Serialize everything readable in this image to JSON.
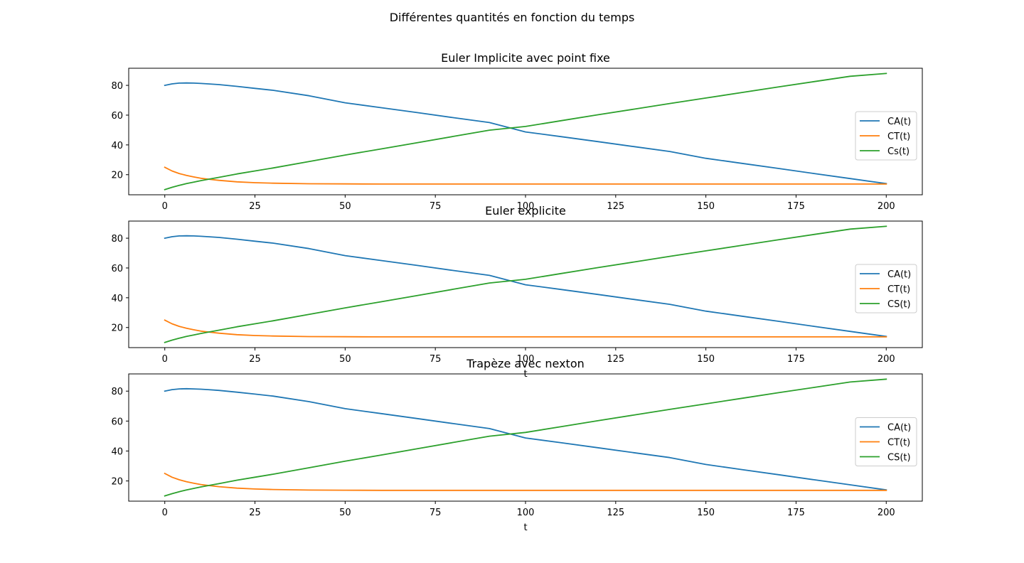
{
  "figure": {
    "suptitle": "Différentes quantités en fonction du temps"
  },
  "colors": {
    "CA": "#1f77b4",
    "CT": "#ff7f0e",
    "CS": "#2ca02c"
  },
  "chart_data": [
    {
      "type": "line",
      "title": "Euler Implicite avec point fixe",
      "xlabel": "",
      "ylabel": "",
      "xlim": [
        -10,
        210
      ],
      "ylim": [
        6.5,
        91.5
      ],
      "xticks": [
        0,
        25,
        50,
        75,
        100,
        125,
        150,
        175,
        200
      ],
      "yticks": [
        20,
        40,
        60,
        80
      ],
      "legend_position": "center-right",
      "grid": false,
      "x": [
        0,
        2,
        4,
        6,
        8,
        10,
        12,
        15,
        20,
        25,
        30,
        40,
        50,
        60,
        70,
        80,
        90,
        100,
        110,
        120,
        130,
        140,
        150,
        160,
        170,
        180,
        190,
        200
      ],
      "series": [
        {
          "name": "CA(t)",
          "color": "CA",
          "values": [
            80.0,
            81.0,
            81.5,
            81.6,
            81.5,
            81.3,
            81.0,
            80.5,
            79.3,
            78.0,
            76.7,
            73.0,
            68.3,
            65.0,
            61.7,
            58.3,
            55.0,
            48.7,
            45.5,
            42.2,
            38.9,
            35.6,
            31.0,
            27.6,
            24.2,
            20.8,
            17.4,
            14.0
          ]
        },
        {
          "name": "CT(t)",
          "color": "CT",
          "values": [
            25.0,
            22.5,
            20.8,
            19.5,
            18.5,
            17.6,
            17.0,
            16.2,
            15.2,
            14.6,
            14.3,
            13.9,
            13.8,
            13.7,
            13.7,
            13.7,
            13.7,
            13.7,
            13.7,
            13.7,
            13.7,
            13.7,
            13.7,
            13.7,
            13.7,
            13.7,
            13.7,
            13.7
          ]
        },
        {
          "name": "Cs(t)",
          "color": "CS",
          "values": [
            10.0,
            11.5,
            12.8,
            14.0,
            15.0,
            16.0,
            16.9,
            18.2,
            20.5,
            22.5,
            24.5,
            28.8,
            33.2,
            37.3,
            41.5,
            45.7,
            49.9,
            52.4,
            56.3,
            60.2,
            64.0,
            67.8,
            71.5,
            75.2,
            78.9,
            82.5,
            86.1,
            88.0
          ]
        }
      ]
    },
    {
      "type": "line",
      "title": "Euler explicite",
      "xlabel": "t",
      "ylabel": "",
      "xlim": [
        -10,
        210
      ],
      "ylim": [
        6.5,
        91.5
      ],
      "xticks": [
        0,
        25,
        50,
        75,
        100,
        125,
        150,
        175,
        200
      ],
      "yticks": [
        20,
        40,
        60,
        80
      ],
      "legend_position": "center-right",
      "grid": false,
      "x": [
        0,
        2,
        4,
        6,
        8,
        10,
        12,
        15,
        20,
        25,
        30,
        40,
        50,
        60,
        70,
        80,
        90,
        100,
        110,
        120,
        130,
        140,
        150,
        160,
        170,
        180,
        190,
        200
      ],
      "series": [
        {
          "name": "CA(t)",
          "color": "CA",
          "values": [
            80.0,
            81.0,
            81.5,
            81.6,
            81.5,
            81.3,
            81.0,
            80.5,
            79.3,
            78.0,
            76.7,
            73.0,
            68.3,
            65.0,
            61.7,
            58.3,
            55.0,
            48.7,
            45.5,
            42.2,
            38.9,
            35.6,
            31.0,
            27.6,
            24.2,
            20.8,
            17.4,
            14.0
          ]
        },
        {
          "name": "CT(t)",
          "color": "CT",
          "values": [
            25.0,
            22.5,
            20.8,
            19.5,
            18.5,
            17.6,
            17.0,
            16.2,
            15.2,
            14.6,
            14.3,
            13.9,
            13.8,
            13.7,
            13.7,
            13.7,
            13.7,
            13.7,
            13.7,
            13.7,
            13.7,
            13.7,
            13.7,
            13.7,
            13.7,
            13.7,
            13.7,
            13.7
          ]
        },
        {
          "name": "CS(t)",
          "color": "CS",
          "values": [
            10.0,
            11.5,
            12.8,
            14.0,
            15.0,
            16.0,
            16.9,
            18.2,
            20.5,
            22.5,
            24.5,
            28.8,
            33.2,
            37.3,
            41.5,
            45.7,
            49.9,
            52.4,
            56.3,
            60.2,
            64.0,
            67.8,
            71.5,
            75.2,
            78.9,
            82.5,
            86.1,
            88.0
          ]
        }
      ]
    },
    {
      "type": "line",
      "title": "Trapèze avec nexton",
      "xlabel": "t",
      "ylabel": "",
      "xlim": [
        -10,
        210
      ],
      "ylim": [
        6.5,
        91.5
      ],
      "xticks": [
        0,
        25,
        50,
        75,
        100,
        125,
        150,
        175,
        200
      ],
      "yticks": [
        20,
        40,
        60,
        80
      ],
      "legend_position": "center-right",
      "grid": false,
      "x": [
        0,
        2,
        4,
        6,
        8,
        10,
        12,
        15,
        20,
        25,
        30,
        40,
        50,
        60,
        70,
        80,
        90,
        100,
        110,
        120,
        130,
        140,
        150,
        160,
        170,
        180,
        190,
        200
      ],
      "series": [
        {
          "name": "CA(t)",
          "color": "CA",
          "values": [
            80.0,
            81.0,
            81.5,
            81.6,
            81.5,
            81.3,
            81.0,
            80.5,
            79.3,
            78.0,
            76.7,
            73.0,
            68.3,
            65.0,
            61.7,
            58.3,
            55.0,
            48.7,
            45.5,
            42.2,
            38.9,
            35.6,
            31.0,
            27.6,
            24.2,
            20.8,
            17.4,
            14.0
          ]
        },
        {
          "name": "CT(t)",
          "color": "CT",
          "values": [
            25.0,
            22.5,
            20.8,
            19.5,
            18.5,
            17.6,
            17.0,
            16.2,
            15.2,
            14.6,
            14.3,
            13.9,
            13.8,
            13.7,
            13.7,
            13.7,
            13.7,
            13.7,
            13.7,
            13.7,
            13.7,
            13.7,
            13.7,
            13.7,
            13.7,
            13.7,
            13.7,
            13.7
          ]
        },
        {
          "name": "CS(t)",
          "color": "CS",
          "values": [
            10.0,
            11.5,
            12.8,
            14.0,
            15.0,
            16.0,
            16.9,
            18.2,
            20.5,
            22.5,
            24.5,
            28.8,
            33.2,
            37.3,
            41.5,
            45.7,
            49.9,
            52.4,
            56.3,
            60.2,
            64.0,
            67.8,
            71.5,
            75.2,
            78.9,
            82.5,
            86.1,
            88.0
          ]
        }
      ]
    }
  ]
}
